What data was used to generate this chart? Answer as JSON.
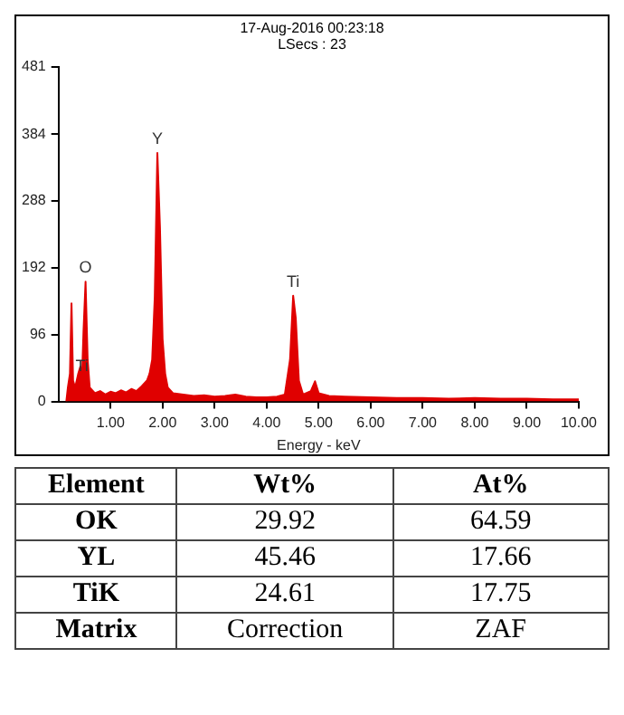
{
  "chart_data": [
    {
      "type": "area",
      "xlabel": "Energy - keV",
      "annotations": [
        "17-Aug-2016 00:23:18",
        "LSecs : 23",
        {
          "text": "O",
          "x": 0.52,
          "y": 172
        },
        {
          "text": "Y",
          "x": 1.9,
          "y": 357
        },
        {
          "text": "Ti",
          "x": 4.51,
          "y": 152
        },
        {
          "text": "Ti",
          "x": 0.45,
          "y": 30
        }
      ],
      "series": [
        {
          "color": "#e00000",
          "x": [
            0.15,
            0.18,
            0.22,
            0.25,
            0.28,
            0.32,
            0.38,
            0.42,
            0.45,
            0.48,
            0.52,
            0.56,
            0.6,
            0.7,
            0.8,
            0.9,
            1.0,
            1.1,
            1.2,
            1.3,
            1.4,
            1.5,
            1.6,
            1.7,
            1.75,
            1.8,
            1.85,
            1.9,
            1.95,
            2.0,
            2.05,
            2.1,
            2.2,
            2.4,
            2.6,
            2.8,
            3.0,
            3.2,
            3.4,
            3.6,
            3.8,
            4.0,
            4.2,
            4.35,
            4.45,
            4.51,
            4.56,
            4.62,
            4.7,
            4.85,
            4.93,
            5.0,
            5.2,
            5.5,
            6.0,
            6.5,
            7.0,
            7.5,
            8.0,
            8.5,
            9.0,
            9.5,
            10.0
          ],
          "values": [
            0,
            20,
            40,
            141,
            30,
            20,
            40,
            50,
            30,
            100,
            172,
            60,
            20,
            12,
            15,
            10,
            14,
            12,
            16,
            13,
            18,
            15,
            22,
            30,
            40,
            60,
            150,
            357,
            250,
            90,
            40,
            20,
            12,
            10,
            8,
            9,
            7,
            8,
            10,
            7,
            6,
            6,
            7,
            10,
            60,
            152,
            120,
            30,
            10,
            15,
            29,
            12,
            8,
            7,
            6,
            5,
            5,
            4,
            5,
            4,
            4,
            3,
            3
          ]
        }
      ],
      "xlim": [
        0,
        10
      ],
      "xticks": [
        {
          "value": 1,
          "label": "1.00"
        },
        {
          "value": 2,
          "label": "2.00"
        },
        {
          "value": 3,
          "label": "3.00"
        },
        {
          "value": 4,
          "label": "4.00"
        },
        {
          "value": 5,
          "label": "5.00"
        },
        {
          "value": 6,
          "label": "6.00"
        },
        {
          "value": 7,
          "label": "7.00"
        },
        {
          "value": 8,
          "label": "8.00"
        },
        {
          "value": 9,
          "label": "9.00"
        },
        {
          "value": 10,
          "label": "10.00"
        }
      ],
      "ylim": [
        0,
        481
      ],
      "yticks": [
        0,
        96,
        192,
        288,
        384,
        481
      ],
      "grid": false,
      "legend": false
    },
    {
      "type": "other",
      "annotations": [
        "Element",
        "Wt%",
        "At%",
        "OK",
        "29.92",
        "64.59",
        "YL",
        "45.46",
        "17.66",
        "TiK",
        "24.61",
        "17.75",
        "Matrix",
        "Correction",
        "ZAF"
      ]
    }
  ]
}
